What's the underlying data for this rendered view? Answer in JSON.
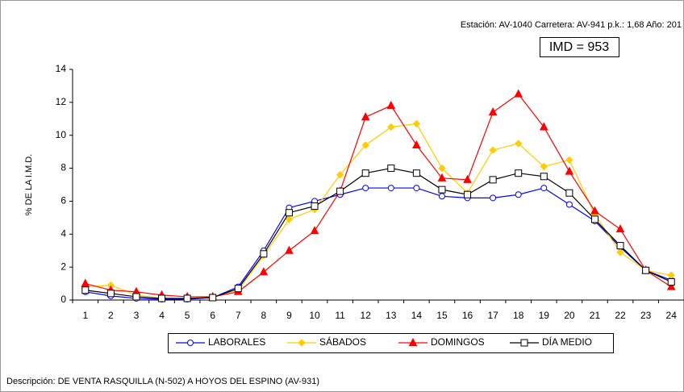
{
  "chart_data": {
    "type": "line",
    "header": "Estación: AV-1040   Carretera: AV-941   p.k.: 1,68   Año: 201",
    "badge": "IMD = 953",
    "ylabel": "% DE LA I.M.D.",
    "footer": "Descripción: DE VENTA RASQUILLA (N-502) A HOYOS DEL ESPINO (AV-931)",
    "categories": [
      1,
      2,
      3,
      4,
      5,
      6,
      7,
      8,
      9,
      10,
      11,
      12,
      13,
      14,
      15,
      16,
      17,
      18,
      19,
      20,
      21,
      22,
      23,
      24
    ],
    "ylim": [
      0,
      14
    ],
    "yticks": [
      0,
      2,
      4,
      6,
      8,
      10,
      12,
      14
    ],
    "series": [
      {
        "name": "LABORALES",
        "color": "#0000ff",
        "marker": "circle",
        "values": [
          0.5,
          0.25,
          0.1,
          0.05,
          0.05,
          0.15,
          0.8,
          3.0,
          5.6,
          6.0,
          6.4,
          6.8,
          6.8,
          6.8,
          6.3,
          6.2,
          6.2,
          6.4,
          6.8,
          5.8,
          4.8,
          3.2,
          1.8,
          1.2
        ]
      },
      {
        "name": "SÁBADOS",
        "color": "#ffcc00",
        "marker": "diamond",
        "values": [
          0.8,
          0.9,
          0.3,
          0.1,
          0.1,
          0.2,
          0.6,
          2.7,
          4.9,
          5.5,
          7.6,
          9.4,
          10.5,
          10.7,
          8.0,
          6.5,
          9.1,
          9.5,
          8.1,
          8.5,
          5.2,
          2.9,
          1.8,
          1.5
        ]
      },
      {
        "name": "DOMINGOS",
        "color": "#ff0000",
        "marker": "triangle",
        "values": [
          1.0,
          0.6,
          0.5,
          0.3,
          0.2,
          0.2,
          0.5,
          1.7,
          3.0,
          4.2,
          6.6,
          11.1,
          11.8,
          9.4,
          7.4,
          7.3,
          11.4,
          12.5,
          10.5,
          7.8,
          5.4,
          4.3,
          1.8,
          0.8
        ]
      },
      {
        "name": "DÍA MEDIO",
        "color": "#000000",
        "marker": "square",
        "values": [
          0.6,
          0.4,
          0.2,
          0.1,
          0.1,
          0.15,
          0.7,
          2.8,
          5.3,
          5.7,
          6.6,
          7.7,
          8.0,
          7.7,
          6.7,
          6.4,
          7.3,
          7.7,
          7.5,
          6.5,
          4.9,
          3.3,
          1.8,
          1.1
        ]
      }
    ]
  }
}
